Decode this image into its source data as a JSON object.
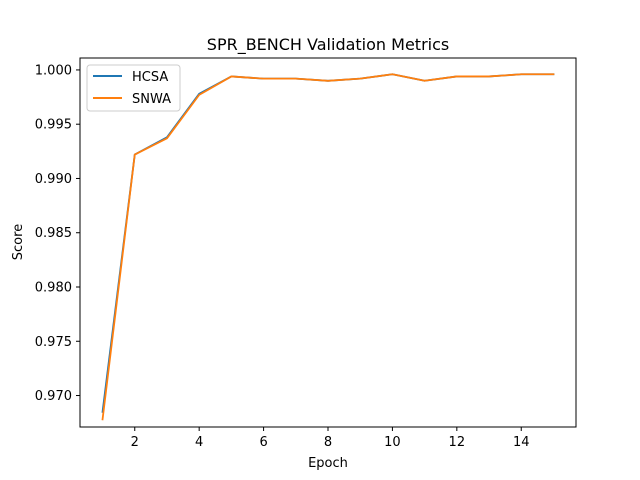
{
  "chart_data": {
    "type": "line",
    "title": "SPR_BENCH Validation Metrics",
    "xlabel": "Epoch",
    "ylabel": "Score",
    "xlim": [
      0.3,
      15.7
    ],
    "ylim": [
      0.9671,
      1.0011
    ],
    "xticks": [
      2,
      4,
      6,
      8,
      10,
      12,
      14
    ],
    "yticks": [
      0.97,
      0.975,
      0.98,
      0.985,
      0.99,
      0.995,
      1.0
    ],
    "xtick_labels": [
      "2",
      "4",
      "6",
      "8",
      "10",
      "12",
      "14"
    ],
    "ytick_labels": [
      "0.970",
      "0.975",
      "0.980",
      "0.985",
      "0.990",
      "0.995",
      "1.000"
    ],
    "grid": false,
    "legend_position": "top-left",
    "x": [
      1,
      2,
      3,
      4,
      5,
      6,
      7,
      8,
      9,
      10,
      11,
      12,
      13,
      14,
      15
    ],
    "series": [
      {
        "name": "HCSA",
        "color": "#1f77b4",
        "values": [
          0.9685,
          0.9922,
          0.9938,
          0.9978,
          0.9994,
          0.9992,
          0.9992,
          0.999,
          0.9992,
          0.9996,
          0.999,
          0.9994,
          0.9994,
          0.9996,
          0.9996
        ]
      },
      {
        "name": "SNWA",
        "color": "#ff7f0e",
        "values": [
          0.9678,
          0.9922,
          0.9937,
          0.9977,
          0.9994,
          0.9992,
          0.9992,
          0.999,
          0.9992,
          0.9996,
          0.999,
          0.9994,
          0.9994,
          0.9996,
          0.9996
        ]
      }
    ]
  }
}
